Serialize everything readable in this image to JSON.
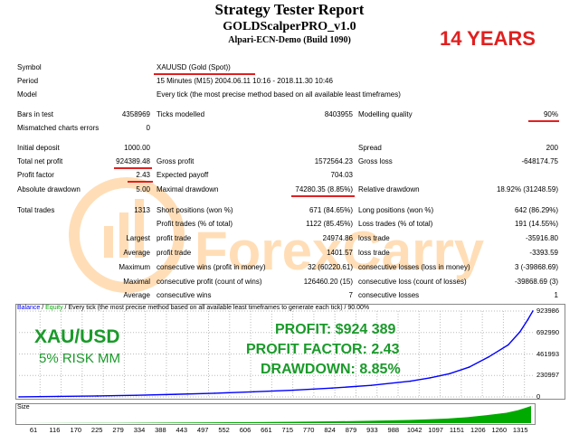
{
  "header": {
    "title": "Strategy Tester Report",
    "subtitle": "GOLDScalperPRO_v1.0",
    "server": "Alpari-ECN-Demo (Build 1090)",
    "badge": "14 YEARS"
  },
  "info": {
    "symbol_label": "Symbol",
    "symbol": "XAUUSD (Gold (Spot))",
    "period_label": "Period",
    "period": "15 Minutes (M15) 2004.06.11 10:16 - 2018.11.30 10:46",
    "model_label": "Model",
    "model": "Every tick (the most precise method based on all available least timeframes)"
  },
  "bars": {
    "bars_label": "Bars in test",
    "bars": "4358969",
    "ticks_label": "Ticks modelled",
    "ticks": "8403955",
    "quality_label": "Modelling quality",
    "quality": "90%",
    "mismatch_label": "Mismatched charts errors",
    "mismatch": "0"
  },
  "results": {
    "deposit_label": "Initial deposit",
    "deposit": "1000.00",
    "spread_label": "Spread",
    "spread": "200",
    "net_label": "Total net profit",
    "net": "924389.48",
    "gross_profit_label": "Gross profit",
    "gross_profit": "1572564.23",
    "gross_loss_label": "Gross loss",
    "gross_loss": "-648174.75",
    "pf_label": "Profit factor",
    "pf": "2.43",
    "payoff_label": "Expected payoff",
    "payoff": "704.03",
    "abs_dd_label": "Absolute drawdown",
    "abs_dd": "5.00",
    "max_dd_label": "Maximal drawdown",
    "max_dd": "74280.35 (8.85%)",
    "rel_dd_label": "Relative drawdown",
    "rel_dd": "18.92% (31248.59)"
  },
  "trades": {
    "total_label": "Total trades",
    "total": "1313",
    "short_label": "Short positions (won %)",
    "short": "671 (84.65%)",
    "long_label": "Long positions (won %)",
    "long": "642 (86.29%)",
    "pt_label": "Profit trades (% of total)",
    "pt": "1122 (85.45%)",
    "lt_label": "Loss trades (% of total)",
    "lt": "191 (14.55%)",
    "largest_label": "Largest",
    "largest_profit_label": "profit trade",
    "largest_profit": "24974.86",
    "largest_loss_label": "loss trade",
    "largest_loss": "-35916.80",
    "average_label": "Average",
    "avg_profit_label": "profit trade",
    "avg_profit": "1401.57",
    "avg_loss_label": "loss trade",
    "avg_loss": "-3393.59",
    "maximum_label": "Maximum",
    "max_cw_label": "consecutive wins (profit in money)",
    "max_cw": "32 (60220.61)",
    "max_cl_label": "consecutive losses (loss in money)",
    "max_cl": "3 (-39868.69)",
    "maximal_label": "Maximal",
    "mx_cp_label": "consecutive profit (count of wins)",
    "mx_cp": "126460.20 (15)",
    "mx_cl_label": "consecutive loss (count of losses)",
    "mx_cl": "-39868.69 (3)",
    "avg2_label": "Average",
    "avg_cw_label": "consecutive wins",
    "avg_cw": "7",
    "avg_cl_label": "consecutive losses",
    "avg_cl": "1"
  },
  "watermark": "ForexCarry",
  "chart": {
    "legend_balance": "Balance",
    "legend_sep": " / ",
    "legend_equity": "Equity",
    "legend_rest": " / Every tick (the most precise method based on all available least timeframes to generate each tick) / 90.00%",
    "overlay_symbol": "XAU/USD",
    "overlay_risk": "5% RISK MM",
    "overlay_profit": "PROFIT: $924 389",
    "overlay_pf": "PROFIT FACTOR: 2.43",
    "overlay_dd": "DRAWDOWN: 8.85%",
    "size_label": "Size",
    "colors": {
      "balance": "#0000ff",
      "equity": "#00aa00",
      "overlay": "#1a9a2a",
      "accent": "#e02020"
    }
  },
  "chart_data": {
    "type": "line",
    "xlabel": "",
    "ylabel": "",
    "yticks": [
      "923986",
      "692990",
      "461993",
      "230997",
      "0"
    ],
    "xticks": [
      "61",
      "116",
      "170",
      "225",
      "279",
      "334",
      "388",
      "443",
      "497",
      "552",
      "606",
      "661",
      "715",
      "770",
      "824",
      "879",
      "933",
      "988",
      "1042",
      "1097",
      "1151",
      "1206",
      "1260",
      "1315"
    ],
    "xlim": [
      0,
      1313
    ],
    "ylim": [
      0,
      923986
    ],
    "series": [
      {
        "x": [
          0,
          100,
          200,
          300,
          400,
          500,
          600,
          700,
          800,
          900,
          1000,
          1050,
          1100,
          1150,
          1200,
          1250,
          1280,
          1300,
          1313
        ],
        "values": [
          1000,
          5000,
          10000,
          18000,
          28000,
          40000,
          55000,
          72000,
          95000,
          125000,
          170000,
          205000,
          250000,
          320000,
          430000,
          560000,
          700000,
          830000,
          924389
        ]
      }
    ]
  }
}
